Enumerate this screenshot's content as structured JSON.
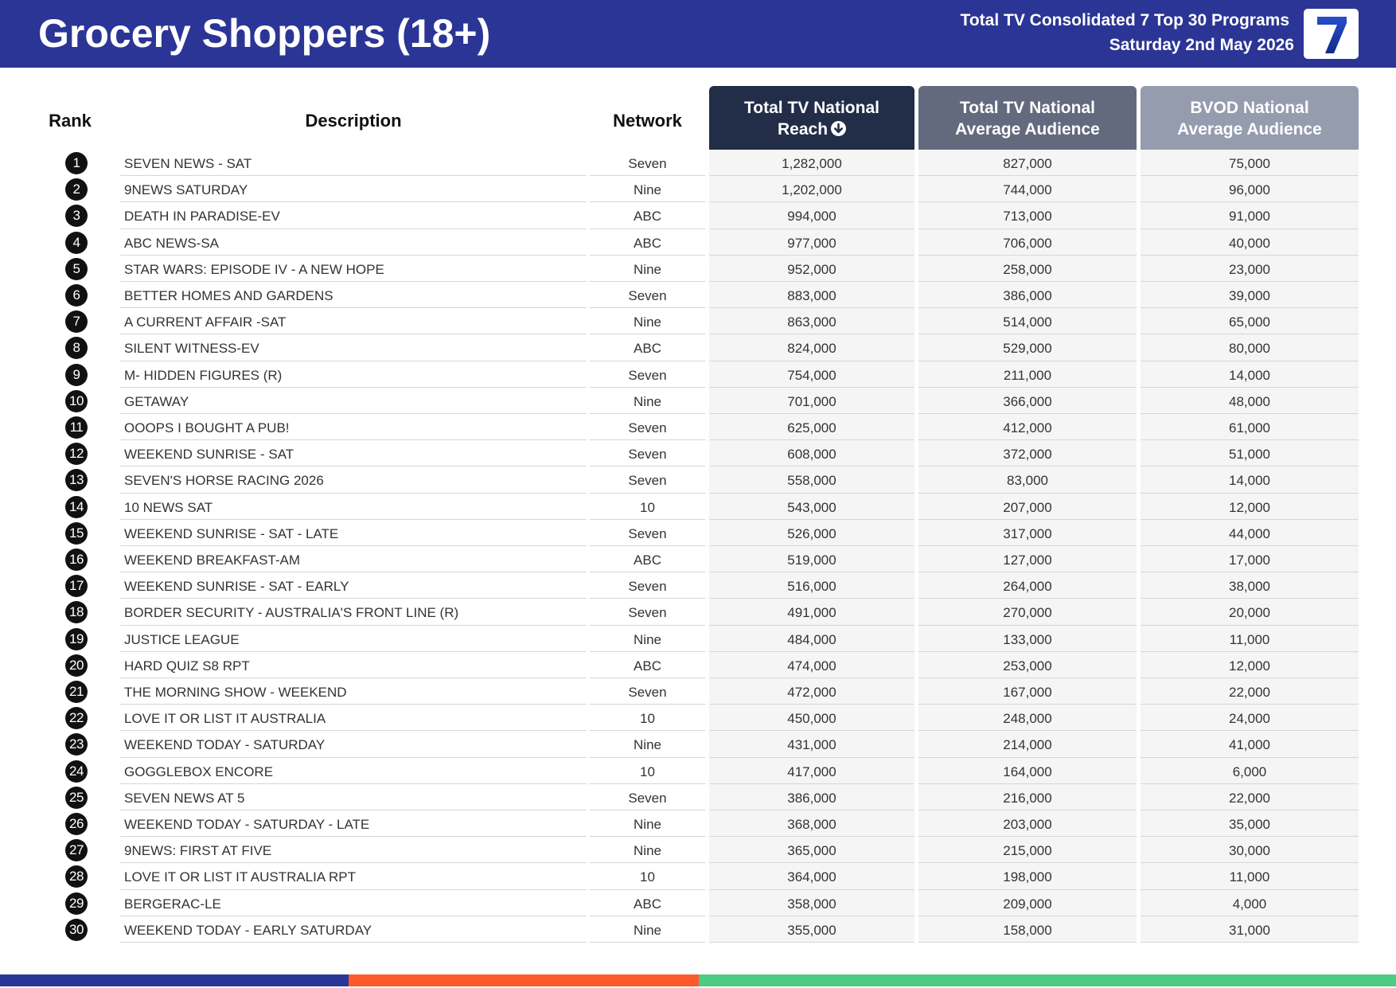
{
  "header": {
    "title": "Grocery Shoppers (18+)",
    "subtitle_line1": "Total TV Consolidated 7 Top 30 Programs",
    "subtitle_line2": "Saturday 2nd May 2026",
    "logo_text": "7",
    "background_color": "#2b3595"
  },
  "columns": {
    "rank": "Rank",
    "description": "Description",
    "network": "Network",
    "reach": {
      "line1": "Total TV National",
      "line2": "Reach",
      "sort_icon": "arrow-down-circle-icon",
      "color": "#222d48"
    },
    "avg": {
      "line1": "Total TV National",
      "line2": "Average Audience",
      "color": "#636a7e"
    },
    "bvod": {
      "line1": "BVOD National",
      "line2": "Average Audience",
      "color": "#959cae"
    }
  },
  "rows": [
    {
      "rank": "1",
      "description": "SEVEN NEWS - SAT",
      "network": "Seven",
      "reach": "1,282,000",
      "avg": "827,000",
      "bvod": "75,000"
    },
    {
      "rank": "2",
      "description": "9NEWS SATURDAY",
      "network": "Nine",
      "reach": "1,202,000",
      "avg": "744,000",
      "bvod": "96,000"
    },
    {
      "rank": "3",
      "description": "DEATH IN PARADISE-EV",
      "network": "ABC",
      "reach": "994,000",
      "avg": "713,000",
      "bvod": "91,000"
    },
    {
      "rank": "4",
      "description": "ABC NEWS-SA",
      "network": "ABC",
      "reach": "977,000",
      "avg": "706,000",
      "bvod": "40,000"
    },
    {
      "rank": "5",
      "description": "STAR WARS: EPISODE IV - A NEW HOPE",
      "network": "Nine",
      "reach": "952,000",
      "avg": "258,000",
      "bvod": "23,000"
    },
    {
      "rank": "6",
      "description": "BETTER HOMES AND GARDENS",
      "network": "Seven",
      "reach": "883,000",
      "avg": "386,000",
      "bvod": "39,000"
    },
    {
      "rank": "7",
      "description": "A CURRENT AFFAIR -SAT",
      "network": "Nine",
      "reach": "863,000",
      "avg": "514,000",
      "bvod": "65,000"
    },
    {
      "rank": "8",
      "description": "SILENT WITNESS-EV",
      "network": "ABC",
      "reach": "824,000",
      "avg": "529,000",
      "bvod": "80,000"
    },
    {
      "rank": "9",
      "description": "M- HIDDEN FIGURES (R)",
      "network": "Seven",
      "reach": "754,000",
      "avg": "211,000",
      "bvod": "14,000"
    },
    {
      "rank": "10",
      "description": "GETAWAY",
      "network": "Nine",
      "reach": "701,000",
      "avg": "366,000",
      "bvod": "48,000"
    },
    {
      "rank": "11",
      "description": "OOOPS I BOUGHT A PUB!",
      "network": "Seven",
      "reach": "625,000",
      "avg": "412,000",
      "bvod": "61,000"
    },
    {
      "rank": "12",
      "description": "WEEKEND SUNRISE - SAT",
      "network": "Seven",
      "reach": "608,000",
      "avg": "372,000",
      "bvod": "51,000"
    },
    {
      "rank": "13",
      "description": "SEVEN'S HORSE RACING 2026",
      "network": "Seven",
      "reach": "558,000",
      "avg": "83,000",
      "bvod": "14,000"
    },
    {
      "rank": "14",
      "description": "10 NEWS SAT",
      "network": "10",
      "reach": "543,000",
      "avg": "207,000",
      "bvod": "12,000"
    },
    {
      "rank": "15",
      "description": "WEEKEND SUNRISE - SAT - LATE",
      "network": "Seven",
      "reach": "526,000",
      "avg": "317,000",
      "bvod": "44,000"
    },
    {
      "rank": "16",
      "description": "WEEKEND BREAKFAST-AM",
      "network": "ABC",
      "reach": "519,000",
      "avg": "127,000",
      "bvod": "17,000"
    },
    {
      "rank": "17",
      "description": "WEEKEND SUNRISE - SAT - EARLY",
      "network": "Seven",
      "reach": "516,000",
      "avg": "264,000",
      "bvod": "38,000"
    },
    {
      "rank": "18",
      "description": "BORDER SECURITY - AUSTRALIA'S FRONT LINE (R)",
      "network": "Seven",
      "reach": "491,000",
      "avg": "270,000",
      "bvod": "20,000"
    },
    {
      "rank": "19",
      "description": "JUSTICE LEAGUE",
      "network": "Nine",
      "reach": "484,000",
      "avg": "133,000",
      "bvod": "11,000"
    },
    {
      "rank": "20",
      "description": "HARD QUIZ S8 RPT",
      "network": "ABC",
      "reach": "474,000",
      "avg": "253,000",
      "bvod": "12,000"
    },
    {
      "rank": "21",
      "description": "THE MORNING SHOW - WEEKEND",
      "network": "Seven",
      "reach": "472,000",
      "avg": "167,000",
      "bvod": "22,000"
    },
    {
      "rank": "22",
      "description": "LOVE IT OR LIST IT AUSTRALIA",
      "network": "10",
      "reach": "450,000",
      "avg": "248,000",
      "bvod": "24,000"
    },
    {
      "rank": "23",
      "description": "WEEKEND TODAY - SATURDAY",
      "network": "Nine",
      "reach": "431,000",
      "avg": "214,000",
      "bvod": "41,000"
    },
    {
      "rank": "24",
      "description": "GOGGLEBOX ENCORE",
      "network": "10",
      "reach": "417,000",
      "avg": "164,000",
      "bvod": "6,000"
    },
    {
      "rank": "25",
      "description": "SEVEN NEWS AT 5",
      "network": "Seven",
      "reach": "386,000",
      "avg": "216,000",
      "bvod": "22,000"
    },
    {
      "rank": "26",
      "description": "WEEKEND TODAY - SATURDAY - LATE",
      "network": "Nine",
      "reach": "368,000",
      "avg": "203,000",
      "bvod": "35,000"
    },
    {
      "rank": "27",
      "description": "9NEWS: FIRST AT FIVE",
      "network": "Nine",
      "reach": "365,000",
      "avg": "215,000",
      "bvod": "30,000"
    },
    {
      "rank": "28",
      "description": "LOVE IT OR LIST IT AUSTRALIA RPT",
      "network": "10",
      "reach": "364,000",
      "avg": "198,000",
      "bvod": "11,000"
    },
    {
      "rank": "29",
      "description": "BERGERAC-LE",
      "network": "ABC",
      "reach": "358,000",
      "avg": "209,000",
      "bvod": "4,000"
    },
    {
      "rank": "30",
      "description": "WEEKEND TODAY - EARLY SATURDAY",
      "network": "Nine",
      "reach": "355,000",
      "avg": "158,000",
      "bvod": "31,000"
    }
  ],
  "footer": {
    "bar_colors": [
      "#2b3595",
      "#fc5a2c",
      "#4ccb84"
    ]
  }
}
